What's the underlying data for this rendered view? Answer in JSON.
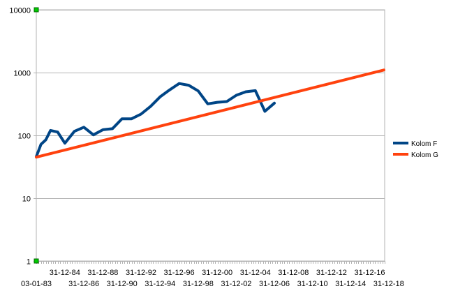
{
  "chart_data": {
    "type": "line",
    "title": "",
    "xlabel": "",
    "ylabel": "",
    "y_scale": "log",
    "ylim": [
      1,
      10000
    ],
    "y_ticks": [
      1,
      10,
      100,
      1000,
      10000
    ],
    "y_tick_labels": [
      "1",
      "10",
      "100",
      "1000",
      "10000"
    ],
    "x_tick_labels": [
      "03-01-83",
      "31-12-84",
      "31-12-86",
      "31-12-88",
      "31-12-90",
      "31-12-92",
      "31-12-94",
      "31-12-96",
      "31-12-98",
      "31-12-00",
      "31-12-02",
      "31-12-04",
      "31-12-06",
      "31-12-08",
      "31-12-10",
      "31-12-12",
      "31-12-14",
      "31-12-16",
      "31-12-18"
    ],
    "grid": "horizontal",
    "legend_position": "right",
    "series": [
      {
        "name": "Kolom F",
        "color": "#004586",
        "points": [
          [
            "1983-01-03",
            46
          ],
          [
            "1983-07-01",
            72
          ],
          [
            "1984-01-01",
            85
          ],
          [
            "1984-07-01",
            120
          ],
          [
            "1985-04-01",
            113
          ],
          [
            "1986-01-01",
            75
          ],
          [
            "1987-01-01",
            116
          ],
          [
            "1988-01-01",
            135
          ],
          [
            "1989-01-01",
            102
          ],
          [
            "1990-01-01",
            123
          ],
          [
            "1991-01-01",
            128
          ],
          [
            "1992-01-01",
            184
          ],
          [
            "1993-01-01",
            184
          ],
          [
            "1994-01-01",
            218
          ],
          [
            "1995-01-01",
            290
          ],
          [
            "1996-01-01",
            410
          ],
          [
            "1997-01-01",
            530
          ],
          [
            "1998-01-01",
            670
          ],
          [
            "1999-01-01",
            630
          ],
          [
            "2000-01-01",
            510
          ],
          [
            "2001-01-01",
            318
          ],
          [
            "2002-01-01",
            336
          ],
          [
            "2003-01-01",
            346
          ],
          [
            "2004-01-01",
            435
          ],
          [
            "2005-01-01",
            495
          ],
          [
            "2006-01-01",
            515
          ],
          [
            "2007-01-01",
            242
          ],
          [
            "2008-01-01",
            326
          ]
        ]
      },
      {
        "name": "Kolom G",
        "color": "#ff420e",
        "points": [
          [
            "1983-01-03",
            45
          ],
          [
            "2019-06-30",
            1100
          ]
        ]
      }
    ]
  }
}
